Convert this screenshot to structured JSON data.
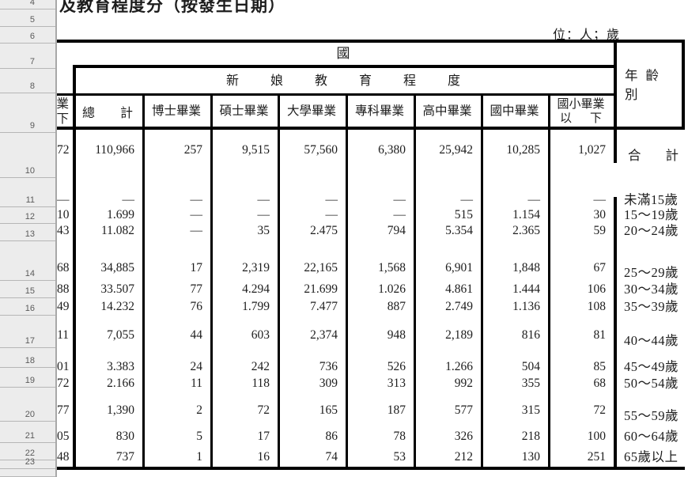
{
  "title": "及教育程度分（按發生日期）",
  "unit_note": "位：人；歲",
  "colors": {
    "border": "#000000",
    "text": "#1d1d1d",
    "gutter_bg": "#ececec",
    "gutter_text": "#5a5a5a"
  },
  "row_gutter": {
    "numbers": [
      "4",
      "5",
      "6",
      "7",
      "8",
      "9",
      "10",
      "11",
      "12",
      "13",
      "14",
      "15",
      "16",
      "17",
      "18",
      "19",
      "20",
      "21",
      "22",
      "23",
      ""
    ]
  },
  "table": {
    "group_header": "國",
    "bride_education_header": "新娘教育程度",
    "clipped_left_header": {
      "line1": "業",
      "line2": "下"
    },
    "columns": {
      "total": {
        "char1": "總",
        "char2": "計"
      },
      "mid": [
        "博士畢業",
        "碩士畢業",
        "大學畢業",
        "專科畢業",
        "高中畢業",
        "國中畢業"
      ],
      "elementary": {
        "line1": "國小畢業",
        "char1": "以",
        "char2": "下"
      }
    },
    "age_header": "年齡別",
    "rows": [
      {
        "clipped": "72",
        "values": [
          "110,966",
          "257",
          "9,515",
          "57,560",
          "6,380",
          "25,942",
          "10,285",
          "1,027"
        ],
        "age": "合計",
        "age_parts": [
          "合",
          "計"
        ]
      },
      {
        "clipped": "—",
        "values": [
          "—",
          "—",
          "—",
          "—",
          "—",
          "—",
          "—",
          "—"
        ],
        "age": "未滿15歲"
      },
      {
        "clipped": "10",
        "values": [
          "1.699",
          "—",
          "—",
          "—",
          "—",
          "515",
          "1.154",
          "30"
        ],
        "age": "15～19歲"
      },
      {
        "clipped": "43",
        "values": [
          "11.082",
          "—",
          "35",
          "2.475",
          "794",
          "5.354",
          "2.365",
          "59"
        ],
        "age": "20～24歲"
      },
      {
        "clipped": "68",
        "values": [
          "34,885",
          "17",
          "2,319",
          "22,165",
          "1,568",
          "6,901",
          "1,848",
          "67"
        ],
        "age": "25～29歲"
      },
      {
        "clipped": "88",
        "values": [
          "33.507",
          "77",
          "4.294",
          "21.699",
          "1.026",
          "4.861",
          "1.444",
          "106"
        ],
        "age": "30～34歲"
      },
      {
        "clipped": "49",
        "values": [
          "14.232",
          "76",
          "1.799",
          "7.477",
          "887",
          "2.749",
          "1.136",
          "108"
        ],
        "age": "35～39歲"
      },
      {
        "clipped": "11",
        "values": [
          "7,055",
          "44",
          "603",
          "2,374",
          "948",
          "2,189",
          "816",
          "81"
        ],
        "age": "40～44歲"
      },
      {
        "clipped": "01",
        "values": [
          "3.383",
          "24",
          "242",
          "736",
          "526",
          "1.266",
          "504",
          "85"
        ],
        "age": "45～49歲"
      },
      {
        "clipped": "72",
        "values": [
          "2.166",
          "11",
          "118",
          "309",
          "313",
          "992",
          "355",
          "68"
        ],
        "age": "50～54歲"
      },
      {
        "clipped": "77",
        "values": [
          "1,390",
          "2",
          "72",
          "165",
          "187",
          "577",
          "315",
          "72"
        ],
        "age": "55～59歲"
      },
      {
        "clipped": "05",
        "values": [
          "830",
          "5",
          "17",
          "86",
          "78",
          "326",
          "218",
          "100"
        ],
        "age": "60～64歲"
      },
      {
        "clipped": "48",
        "values": [
          "737",
          "1",
          "16",
          "74",
          "53",
          "212",
          "130",
          "251"
        ],
        "age": "65歲以上"
      }
    ]
  }
}
